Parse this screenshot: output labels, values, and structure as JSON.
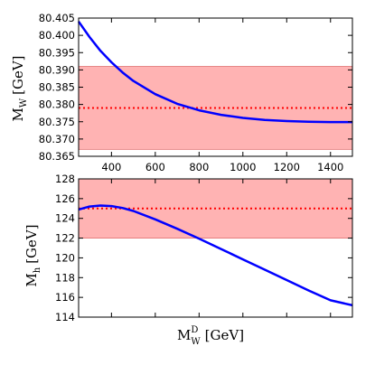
{
  "chart_data": [
    {
      "type": "line",
      "ylabel": "M",
      "ylabel_sub": "W",
      "ylabel_unit": "[GeV]",
      "xlim": [
        250,
        1500
      ],
      "ylim": [
        80.365,
        80.405
      ],
      "xticks": [
        400,
        600,
        800,
        1000,
        1200,
        1400
      ],
      "xtick_labels": [
        "400",
        "600",
        "800",
        "1000",
        "1200",
        "1400"
      ],
      "yticks": [
        80.365,
        80.37,
        80.375,
        80.38,
        80.385,
        80.39,
        80.395,
        80.4,
        80.405
      ],
      "ytick_labels": [
        "80.365",
        "80.370",
        "80.375",
        "80.380",
        "80.385",
        "80.390",
        "80.395",
        "80.400",
        "80.405"
      ],
      "band": {
        "ymin": 80.367,
        "ymax": 80.391,
        "color": "#ffb3b3"
      },
      "reference_line": {
        "y": 80.379,
        "color": "#ff0000",
        "style": "dotted"
      },
      "series": [
        {
          "color": "#0000ff",
          "x": [
            250,
            300,
            350,
            400,
            450,
            500,
            600,
            700,
            800,
            900,
            1000,
            1100,
            1200,
            1300,
            1400,
            1500
          ],
          "y": [
            80.404,
            80.3995,
            80.3955,
            80.3922,
            80.3893,
            80.3868,
            80.383,
            80.3802,
            80.3783,
            80.377,
            80.3761,
            80.3755,
            80.3752,
            80.375,
            80.3749,
            80.3749
          ]
        }
      ],
      "grid": false
    },
    {
      "type": "line",
      "ylabel": "M",
      "ylabel_sub": "h",
      "ylabel_unit": "[GeV]",
      "xlabel": "M",
      "xlabel_sub": "W",
      "xlabel_sup": "D",
      "xlabel_unit": "[GeV]",
      "xlim": [
        250,
        1500
      ],
      "ylim": [
        114,
        128
      ],
      "yticks": [
        114,
        116,
        118,
        120,
        122,
        124,
        126,
        128
      ],
      "ytick_labels": [
        "114",
        "116",
        "118",
        "120",
        "122",
        "124",
        "126",
        "128"
      ],
      "band": {
        "ymin": 122,
        "ymax": 128,
        "color": "#ffb3b3"
      },
      "reference_line": {
        "y": 125,
        "color": "#ff0000",
        "style": "dotted"
      },
      "series": [
        {
          "color": "#0000ff",
          "x": [
            250,
            300,
            350,
            400,
            450,
            500,
            600,
            700,
            800,
            900,
            1000,
            1100,
            1200,
            1300,
            1400,
            1500
          ],
          "y": [
            124.9,
            125.2,
            125.3,
            125.25,
            125.05,
            124.75,
            123.9,
            122.95,
            121.95,
            120.9,
            119.85,
            118.8,
            117.75,
            116.7,
            115.7,
            115.2
          ]
        }
      ],
      "grid": false
    }
  ]
}
